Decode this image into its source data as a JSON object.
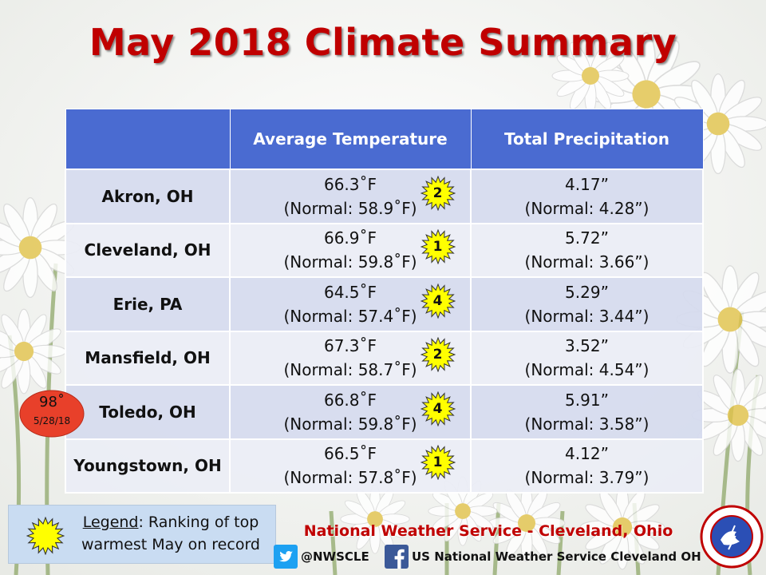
{
  "title": "May 2018 Climate Summary",
  "table": {
    "headers": [
      "",
      "Average Temperature",
      "Total Precipitation"
    ],
    "rows": [
      {
        "city": "Akron, OH",
        "temp": "66.3˚F",
        "temp_normal": "(Normal: 58.9˚F)",
        "rank": "2",
        "precip": "4.17”",
        "precip_normal": "(Normal: 4.28”)"
      },
      {
        "city": "Cleveland, OH",
        "temp": "66.9˚F",
        "temp_normal": "(Normal: 59.8˚F)",
        "rank": "1",
        "precip": "5.72”",
        "precip_normal": "(Normal: 3.66”)"
      },
      {
        "city": "Erie, PA",
        "temp": "64.5˚F",
        "temp_normal": "(Normal: 57.4˚F)",
        "rank": "4",
        "precip": "5.29”",
        "precip_normal": "(Normal: 3.44”)"
      },
      {
        "city": "Mansfield, OH",
        "temp": "67.3˚F",
        "temp_normal": "(Normal: 58.7˚F)",
        "rank": "2",
        "precip": "3.52”",
        "precip_normal": "(Normal: 4.54”)"
      },
      {
        "city": "Toledo, OH",
        "temp": "66.8˚F",
        "temp_normal": "(Normal: 59.8˚F)",
        "rank": "4",
        "precip": "5.91”",
        "precip_normal": "(Normal: 3.58”)"
      },
      {
        "city": "Youngstown, OH",
        "temp": "66.5˚F",
        "temp_normal": "(Normal: 57.8˚F)",
        "rank": "1",
        "precip": "4.12”",
        "precip_normal": "(Normal: 3.79”)"
      }
    ]
  },
  "record_badge": {
    "value": "98˚",
    "date": "5/28/18"
  },
  "legend": {
    "key": "Legend",
    "text": ": Ranking of top warmest May on record"
  },
  "footer": {
    "org": "National Weather Service - Cleveland, Ohio",
    "twitter_handle": "@NWSCLE",
    "facebook_page": "US National Weather Service Cleveland OH"
  },
  "colors": {
    "title": "#c00000",
    "header_bg": "#4a6bd1",
    "star": "#ffff00",
    "record_badge": "#e8402a",
    "legend_bg": "#c9dcf2"
  },
  "icons": [
    "sun-star-icon",
    "twitter-icon",
    "facebook-icon",
    "nws-seal-icon",
    "daisy-background"
  ]
}
